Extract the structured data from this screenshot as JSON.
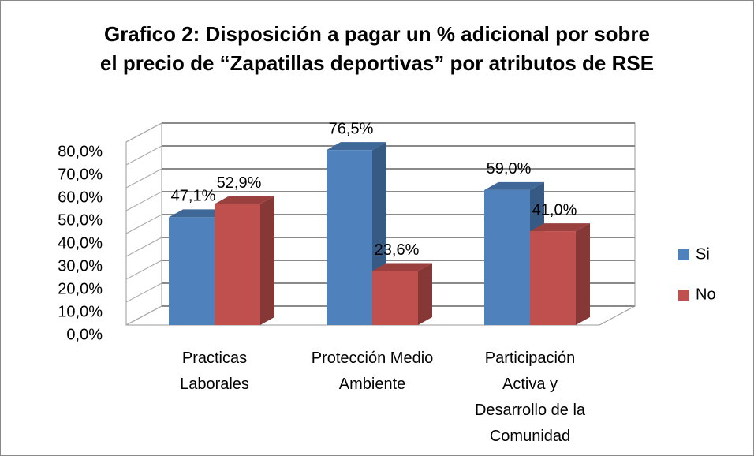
{
  "chart_data": {
    "type": "bar3d",
    "title": [
      "Grafico 2: Disposición a pagar un % adicional por sobre",
      "el precio de “Zapatillas deportivas” por atributos de RSE"
    ],
    "categories": [
      "Practicas\nLaborales",
      "Protección Medio\nAmbiente",
      "Participación\nActiva y\nDesarrollo de la\nComunidad"
    ],
    "series": [
      {
        "name": "Si",
        "color": "#4f81bd",
        "values": [
          47.1,
          76.5,
          59.0
        ],
        "value_labels": [
          "47,1%",
          "76,5%",
          "59,0%"
        ]
      },
      {
        "name": "No",
        "color": "#c0504d",
        "values": [
          52.9,
          23.6,
          41.0
        ],
        "value_labels": [
          "52,9%",
          "23,6%",
          "41,0%"
        ]
      }
    ],
    "ylim": [
      0,
      80
    ],
    "yticks": [
      {
        "value": 0,
        "label": "0,0%"
      },
      {
        "value": 10,
        "label": "10,0%"
      },
      {
        "value": 20,
        "label": "20,0%"
      },
      {
        "value": 30,
        "label": "30,0%"
      },
      {
        "value": 40,
        "label": "40,0%"
      },
      {
        "value": 50,
        "label": "50,0%"
      },
      {
        "value": 60,
        "label": "60,0%"
      },
      {
        "value": 70,
        "label": "70,0%"
      },
      {
        "value": 80,
        "label": "80,0%"
      }
    ],
    "grid": true,
    "legend": "right"
  }
}
